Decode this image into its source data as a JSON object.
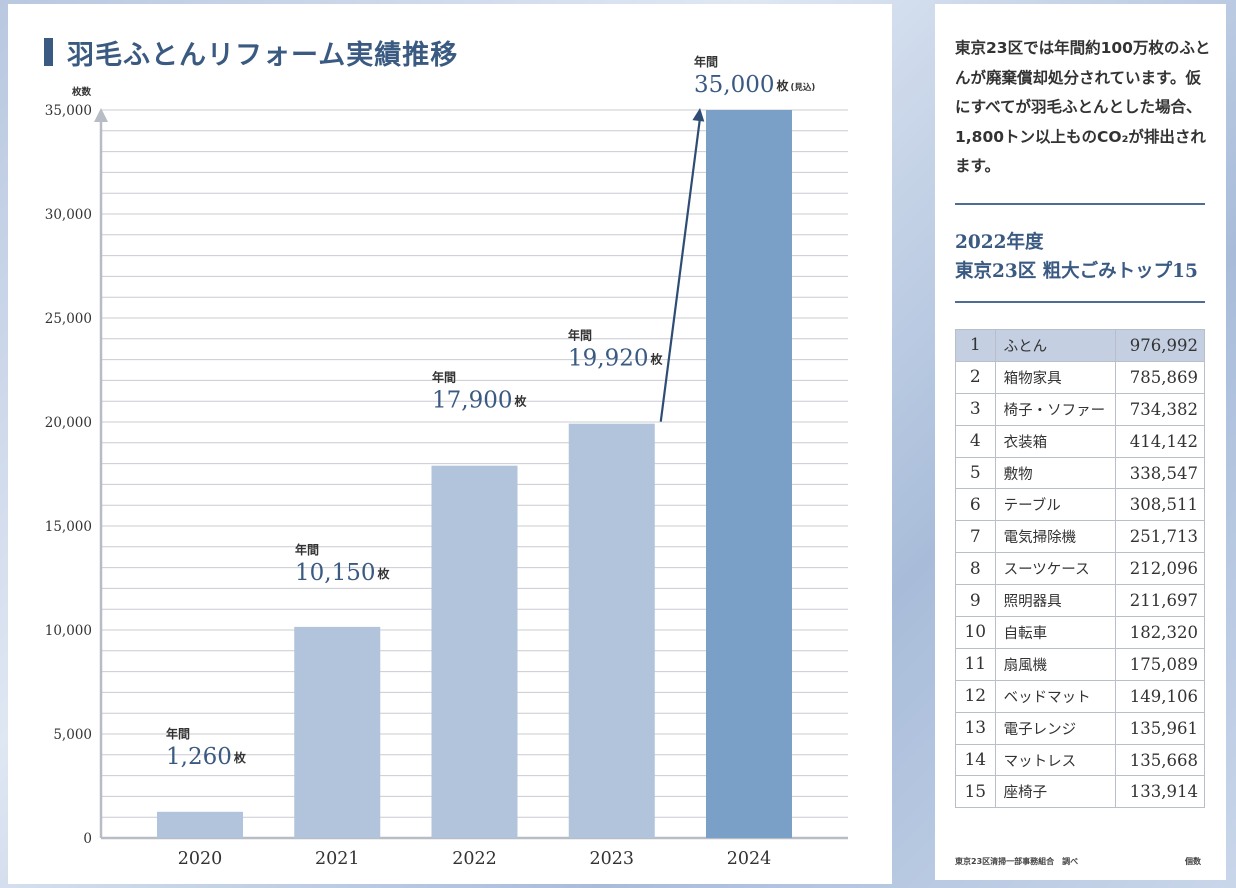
{
  "chart_data": {
    "type": "bar",
    "title": "羽毛ふとんリフォーム実績推移",
    "ylabel": "枚数",
    "xlabel": "",
    "ylim": [
      0,
      35000
    ],
    "yticks": [
      0,
      5000,
      10000,
      15000,
      20000,
      25000,
      30000,
      35000
    ],
    "ytick_labels": [
      "0",
      "5,000",
      "10,000",
      "15,000",
      "20,000",
      "25,000",
      "30,000",
      "35,000"
    ],
    "categories": [
      "2020",
      "2021",
      "2022",
      "2023",
      "2024"
    ],
    "values": [
      1260,
      10150,
      17900,
      19920,
      35000
    ],
    "data_labels": [
      {
        "prefix": "年間",
        "value": "1,260",
        "unit": "枚",
        "note": ""
      },
      {
        "prefix": "年間",
        "value": "10,150",
        "unit": "枚",
        "note": ""
      },
      {
        "prefix": "年間",
        "value": "17,900",
        "unit": "枚",
        "note": ""
      },
      {
        "prefix": "年間",
        "value": "19,920",
        "unit": "枚",
        "note": ""
      },
      {
        "prefix": "年間",
        "value": "35,000",
        "unit": "枚",
        "note": "(見込)"
      }
    ],
    "grid": true,
    "colors": {
      "bar": "#b2c3dc",
      "bar_highlight": "#7aa0c8",
      "axis": "#b8bcc4",
      "grid": "#c9ccd2",
      "label": "#3a5a82",
      "arrow": "#2f4d74"
    }
  },
  "side": {
    "description": "東京23区では年間約100万枚のふとんが廃棄償却処分されています。仮にすべてが羽毛ふとんとした場合、1,800トン以上ものCO₂が排出されます。",
    "heading_line1": "2022年度",
    "heading_line2": "東京23区 粗大ごみトップ15",
    "ranking": [
      {
        "rank": "1",
        "name": "ふとん",
        "value": "976,992"
      },
      {
        "rank": "2",
        "name": "箱物家具",
        "value": "785,869"
      },
      {
        "rank": "3",
        "name": "椅子・ソファー",
        "value": "734,382"
      },
      {
        "rank": "4",
        "name": "衣装箱",
        "value": "414,142"
      },
      {
        "rank": "5",
        "name": "敷物",
        "value": "338,547"
      },
      {
        "rank": "6",
        "name": "テーブル",
        "value": "308,511"
      },
      {
        "rank": "7",
        "name": "電気掃除機",
        "value": "251,713"
      },
      {
        "rank": "8",
        "name": "スーツケース",
        "value": "212,096"
      },
      {
        "rank": "9",
        "name": "照明器具",
        "value": "211,697"
      },
      {
        "rank": "10",
        "name": "自転車",
        "value": "182,320"
      },
      {
        "rank": "11",
        "name": "扇風機",
        "value": "175,089"
      },
      {
        "rank": "12",
        "name": "ベッドマット",
        "value": "149,106"
      },
      {
        "rank": "13",
        "name": "電子レンジ",
        "value": "135,961"
      },
      {
        "rank": "14",
        "name": "マットレス",
        "value": "135,668"
      },
      {
        "rank": "15",
        "name": "座椅子",
        "value": "133,914"
      }
    ],
    "source": "東京23区清掃一部事務組合　調べ",
    "unit_note": "個数"
  }
}
